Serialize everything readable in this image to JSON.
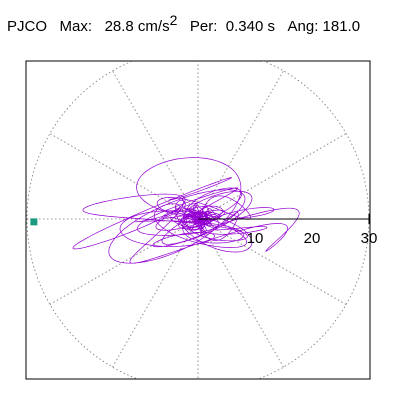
{
  "header": {
    "station": "PJCO",
    "max_label": "Max:",
    "max_value": "28.8 cm/s",
    "max_exp": "2",
    "per_label": "Per:",
    "per_value": "0.340 s",
    "ang_label": "Ang:",
    "ang_value": "181.0"
  },
  "chart_data": {
    "type": "polar-particle-motion",
    "title": "PJCO Max: 28.8 cm/s2 Per: 0.340 s Ang: 181.0",
    "station": "PJCO",
    "max_amplitude": 28.8,
    "max_units": "cm/s2",
    "period_s": 0.34,
    "angle_deg": 181.0,
    "radial_range": [
      0,
      30
    ],
    "radial_ticks": [
      10,
      20,
      30
    ],
    "radial_tick_labels": [
      "10",
      "20",
      "30"
    ],
    "angular_grid_step_deg": 30,
    "grid": true,
    "trace_color": "#9400D3",
    "marker_color": "#1a9a7f",
    "max_marker": {
      "angle_deg": 181.0,
      "r": 28.8
    },
    "axis_line_angle_deg": 0
  }
}
